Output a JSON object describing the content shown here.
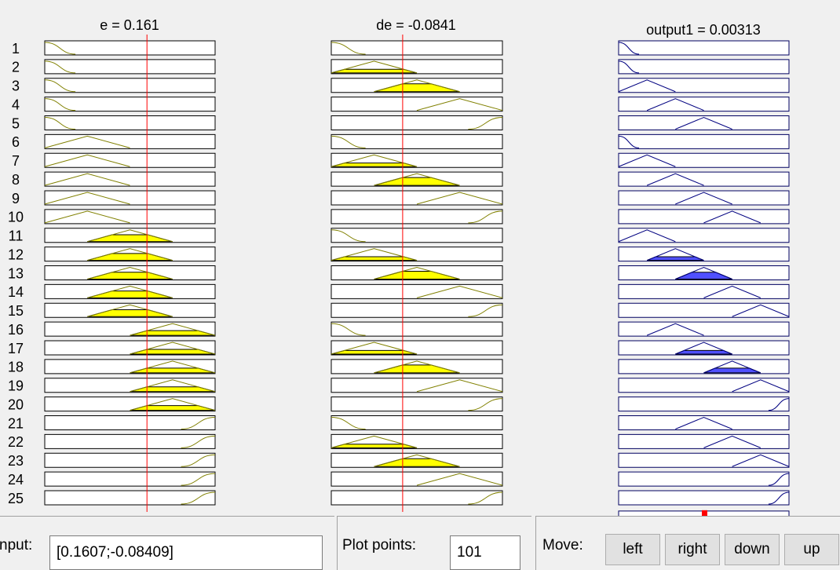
{
  "headers": [
    "e = 0.161",
    "de = -0.0841",
    "output1 = 0.00313"
  ],
  "rows": [
    "1",
    "2",
    "3",
    "4",
    "5",
    "6",
    "7",
    "8",
    "9",
    "10",
    "11",
    "12",
    "13",
    "14",
    "15",
    "16",
    "17",
    "18",
    "19",
    "20",
    "21",
    "22",
    "23",
    "24",
    "25"
  ],
  "input": {
    "label": "nput:",
    "value": "[0.1607;-0.08409]"
  },
  "plot_points": {
    "label": "Plot points:",
    "value": "101"
  },
  "move": {
    "label": "Move:",
    "buttons": [
      "left",
      "right",
      "down",
      "up"
    ]
  }
}
